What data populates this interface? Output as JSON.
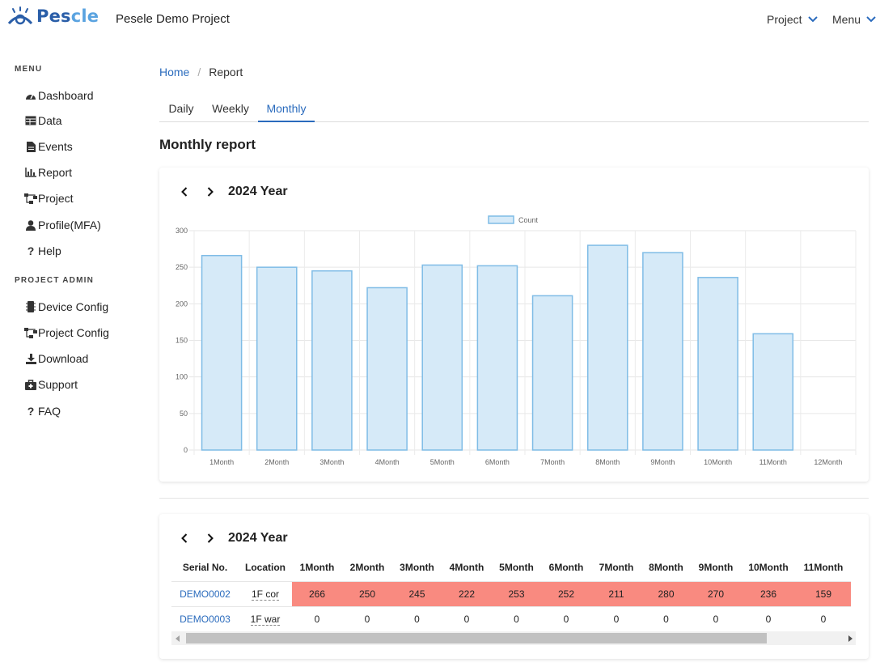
{
  "header": {
    "logo_text_a": "Pes",
    "logo_text_b": "cle",
    "project_name": "Pesele Demo Project",
    "project_menu": "Project",
    "menu": "Menu"
  },
  "sidebar": {
    "menu_heading": "MENU",
    "items": [
      {
        "label": "Dashboard",
        "icon": "dashboard-icon"
      },
      {
        "label": "Data",
        "icon": "table-icon"
      },
      {
        "label": "Events",
        "icon": "file-icon"
      },
      {
        "label": "Report",
        "icon": "bar-chart-icon"
      },
      {
        "label": "Project",
        "icon": "sitemap-icon"
      },
      {
        "label": "Profile(MFA)",
        "icon": "user-icon"
      },
      {
        "label": "Help",
        "icon": "question-icon"
      }
    ],
    "admin_heading": "PROJECT ADMIN",
    "admin_items": [
      {
        "label": "Device Config",
        "icon": "device-icon"
      },
      {
        "label": "Project Config",
        "icon": "sitemap-icon"
      },
      {
        "label": "Download",
        "icon": "download-icon"
      },
      {
        "label": "Support",
        "icon": "support-icon"
      },
      {
        "label": "FAQ",
        "icon": "question-icon"
      }
    ]
  },
  "breadcrumb": {
    "home": "Home",
    "separator": "/",
    "current": "Report"
  },
  "tabs": [
    {
      "label": "Daily",
      "active": false
    },
    {
      "label": "Weekly",
      "active": false
    },
    {
      "label": "Monthly",
      "active": true
    }
  ],
  "page_title": "Monthly report",
  "chart_card": {
    "year_label": "2024 Year"
  },
  "chart_data": {
    "type": "bar",
    "categories": [
      "1Month",
      "2Month",
      "3Month",
      "4Month",
      "5Month",
      "6Month",
      "7Month",
      "8Month",
      "9Month",
      "10Month",
      "11Month",
      "12Month"
    ],
    "series": [
      {
        "name": "Count",
        "values": [
          266,
          250,
          245,
          222,
          253,
          252,
          211,
          280,
          270,
          236,
          159,
          0
        ]
      }
    ],
    "yticks": [
      0,
      50,
      100,
      150,
      200,
      250,
      300
    ],
    "ylim": [
      0,
      300
    ],
    "legend": "top-center",
    "grid": true,
    "colors": {
      "fill": "#d6eaf8",
      "stroke": "#7fbce6"
    }
  },
  "table_card": {
    "year_label": "2024 Year",
    "columns": [
      "Serial No.",
      "Location",
      "1Month",
      "2Month",
      "3Month",
      "4Month",
      "5Month",
      "6Month",
      "7Month",
      "8Month",
      "9Month",
      "10Month",
      "11Month"
    ],
    "rows": [
      {
        "serial": "DEMO0002",
        "location": "1F cor",
        "values": [
          "266",
          "250",
          "245",
          "222",
          "253",
          "252",
          "211",
          "280",
          "270",
          "236",
          "159"
        ],
        "highlight": true
      },
      {
        "serial": "DEMO0003",
        "location": "1F war",
        "values": [
          "0",
          "0",
          "0",
          "0",
          "0",
          "0",
          "0",
          "0",
          "0",
          "0",
          "0"
        ],
        "highlight": false
      }
    ],
    "highlight_color": "#f98a80"
  },
  "colors": {
    "accent": "#2a6bbd",
    "logo_dark": "#2a5ea8",
    "logo_light": "#5aa3e0"
  }
}
